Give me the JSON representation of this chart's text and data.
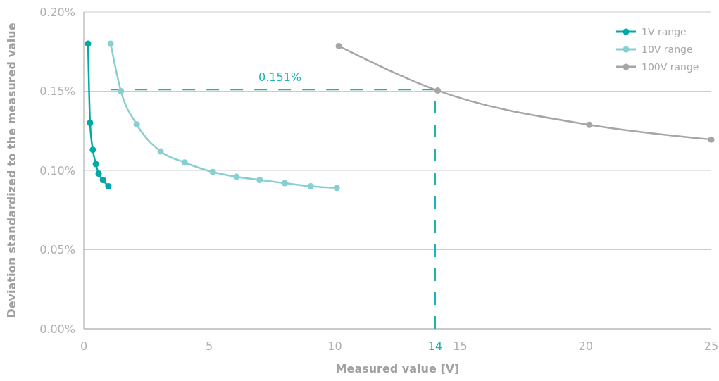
{
  "chart_data": {
    "type": "line",
    "xlabel": "Measured value [V]",
    "ylabel": "Deviation standardized to the measured value",
    "xlim": [
      0,
      25
    ],
    "xticks": [
      0,
      5,
      10,
      15,
      20,
      25
    ],
    "ylim": [
      0,
      0.2
    ],
    "yticks": [
      {
        "value": 0,
        "label": "0.00%"
      },
      {
        "value": 0.05,
        "label": "0.05%"
      },
      {
        "value": 0.1,
        "label": "0.10%"
      },
      {
        "value": 0.15,
        "label": "0.15%"
      },
      {
        "value": 0.2,
        "label": "0.20%"
      }
    ],
    "grid": "y",
    "legend": "top right",
    "marker": "circle",
    "line_style": "solid",
    "series": [
      {
        "name": "1V range",
        "color": "#00a9a5",
        "x": [
          0.17,
          0.25,
          0.36,
          0.48,
          0.59,
          0.76,
          0.98
        ],
        "values": [
          0.18,
          0.13,
          0.113,
          0.104,
          0.098,
          0.094,
          0.09
        ]
      },
      {
        "name": "10V range",
        "color": "#86cfd2",
        "x": [
          1.07,
          1.48,
          2.11,
          3.06,
          4.02,
          5.14,
          6.08,
          7.01,
          8.01,
          9.04,
          10.08
        ],
        "values": [
          0.18,
          0.15,
          0.129,
          0.112,
          0.105,
          0.099,
          0.096,
          0.094,
          0.092,
          0.09,
          0.089
        ]
      },
      {
        "name": "100V range",
        "color": "#a6a6aa",
        "x": [
          10.16,
          14.1,
          20.14,
          25
        ],
        "values": [
          0.1785,
          0.1504,
          0.1288,
          0.1195
        ]
      }
    ],
    "ref_lines": [
      {
        "axis": "y",
        "value": 0.151,
        "label": "0.151%",
        "color": "#1ab3b0",
        "line_style": "dashed"
      },
      {
        "axis": "x",
        "value": 14,
        "label": "14",
        "color": "#1ab3b0",
        "line_style": "dashed"
      }
    ]
  }
}
